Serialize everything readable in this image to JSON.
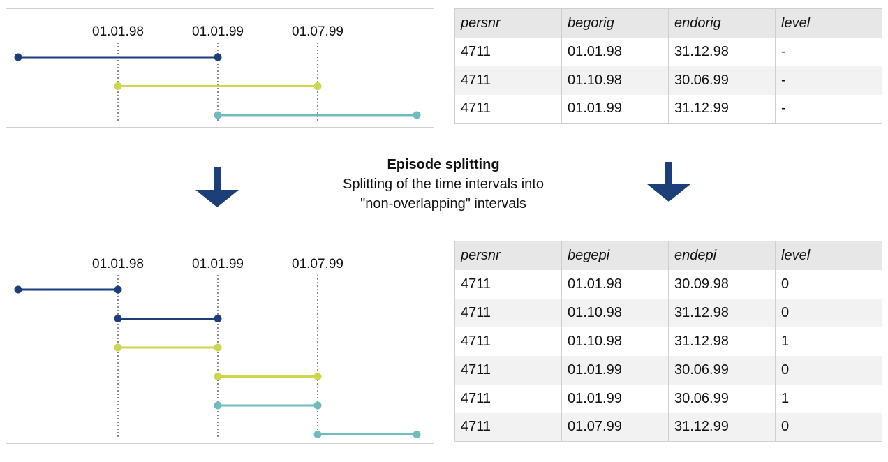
{
  "top_diagram": {
    "date_labels": [
      "01.01.98",
      "01.01.99",
      "01.07.99"
    ],
    "intervals": [
      {
        "from": "start",
        "to": "01.01.99",
        "color": "#1c3f7a"
      },
      {
        "from": "01.01.98",
        "to": "01.07.99",
        "color": "#cdd64e"
      },
      {
        "from": "01.01.99",
        "to": "end",
        "color": "#6fbcbc"
      }
    ]
  },
  "bottom_diagram": {
    "date_labels": [
      "01.01.98",
      "01.01.99",
      "01.07.99"
    ],
    "intervals": [
      {
        "from": "start",
        "to": "01.01.98",
        "color": "#1c3f7a"
      },
      {
        "from": "01.01.98",
        "to": "01.01.99",
        "color": "#1c3f7a"
      },
      {
        "from": "01.01.98",
        "to": "01.01.99",
        "color": "#cdd64e"
      },
      {
        "from": "01.01.99",
        "to": "01.07.99",
        "color": "#cdd64e"
      },
      {
        "from": "01.01.99",
        "to": "01.07.99",
        "color": "#6fbcbc"
      },
      {
        "from": "01.07.99",
        "to": "end",
        "color": "#6fbcbc"
      }
    ]
  },
  "top_table": {
    "headers": [
      "persnr",
      "begorig",
      "endorig",
      "level"
    ],
    "rows": [
      [
        "4711",
        "01.01.98",
        "31.12.98",
        "-"
      ],
      [
        "4711",
        "01.10.98",
        "30.06.99",
        "-"
      ],
      [
        "4711",
        "01.01.99",
        "31.12.99",
        "-"
      ]
    ]
  },
  "bottom_table": {
    "headers": [
      "persnr",
      "begepi",
      "endepi",
      "level"
    ],
    "rows": [
      [
        "4711",
        "01.01.98",
        "30.09.98",
        "0"
      ],
      [
        "4711",
        "01.10.98",
        "31.12.98",
        "0"
      ],
      [
        "4711",
        "01.10.98",
        "31.12.98",
        "1"
      ],
      [
        "4711",
        "01.01.99",
        "30.06.99",
        "0"
      ],
      [
        "4711",
        "01.01.99",
        "30.06.99",
        "1"
      ],
      [
        "4711",
        "01.07.99",
        "31.12.99",
        "0"
      ]
    ]
  },
  "caption": {
    "title": "Episode splitting",
    "line1": "Splitting of the time intervals into",
    "line2": "\"non-overlapping\" intervals"
  },
  "colors": {
    "arrow": "#1c3f7a",
    "guide": "#8a8a8a",
    "header_bg": "#e7e7e7",
    "stripe_bg": "#f2f2f2"
  }
}
